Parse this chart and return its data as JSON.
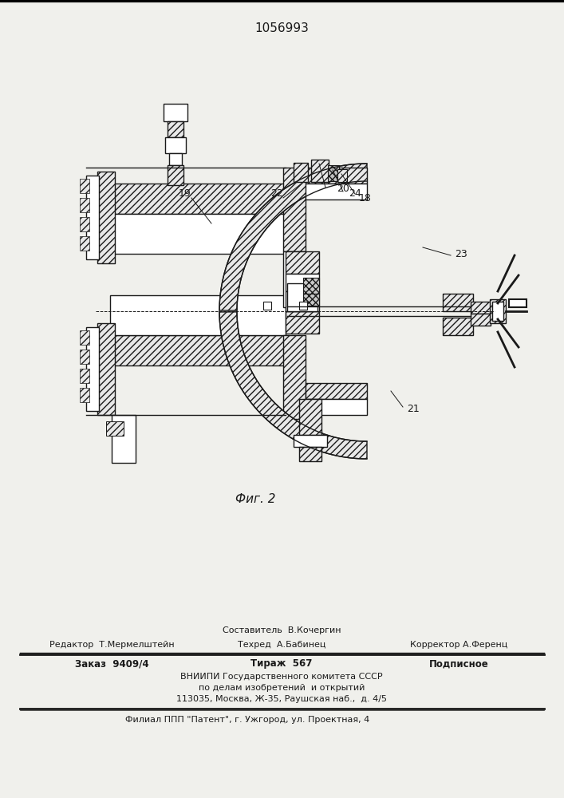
{
  "patent_number": "1056993",
  "fig_label": "Фиг. 2",
  "bg_color": "#f0f0ec",
  "line_color": "#1a1a1a",
  "footer": {
    "line1": "Составитель  В.Кочергин",
    "line2_l": "Редактор  Т.Мермелштейн",
    "line2_c": "Техред  А.Бабинец",
    "line2_r": "Корректор А.Ференц",
    "line3_l": "Заказ  9409/4",
    "line3_c": "Тираж  567",
    "line3_r": "Подписное",
    "line4": "ВНИИПИ Государственного комитета СССР",
    "line5": "по делам изобретений  и открытий",
    "line6": "113035, Москва, Ж-35, Раушская наб.,  д. 4/5",
    "line7": "Филиал ППП \"Патент\", г. Ужгород, ул. Проектная, 4"
  }
}
